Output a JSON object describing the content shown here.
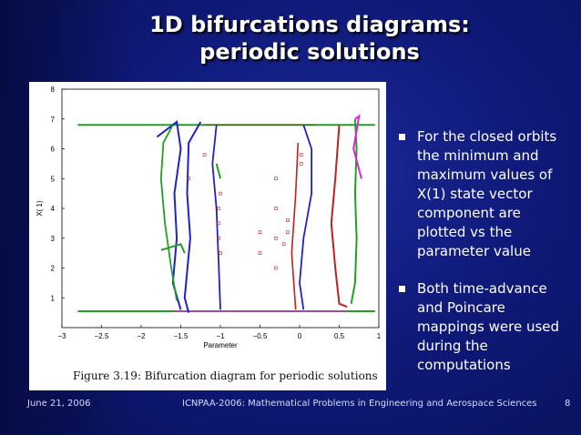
{
  "slide": {
    "title_line1": "1D bifurcations diagrams:",
    "title_line2": "periodic solutions",
    "bullets": [
      "For the closed orbits the minimum and maximum values of X(1) state vector component are plotted vs the parameter value",
      "Both time-advance and Poincare mappings were used during the computations"
    ],
    "footer": {
      "date": "June 21, 2006",
      "conference": "ICNPAA-2006: Mathematical Problems in Engineering and Aerospace Sciences",
      "page": "8"
    }
  },
  "figure": {
    "caption": "Figure 3.19:  Bifurcation diagram for periodic solutions",
    "xlabel": "Parameter",
    "ylabel": "X( 1)",
    "xlim": [
      -3,
      1
    ],
    "ylim": [
      0,
      8
    ],
    "xticks": [
      "−3",
      "−2.5",
      "−2",
      "−1.5",
      "−1",
      "−0.5",
      "0",
      "0.5",
      "1"
    ],
    "yticks": [
      "1",
      "2",
      "3",
      "4",
      "5",
      "6",
      "7",
      "8"
    ],
    "colors": {
      "green": "#22a022",
      "blue": "#2020d0",
      "red": "#c02020",
      "magenta": "#e020e0"
    }
  }
}
